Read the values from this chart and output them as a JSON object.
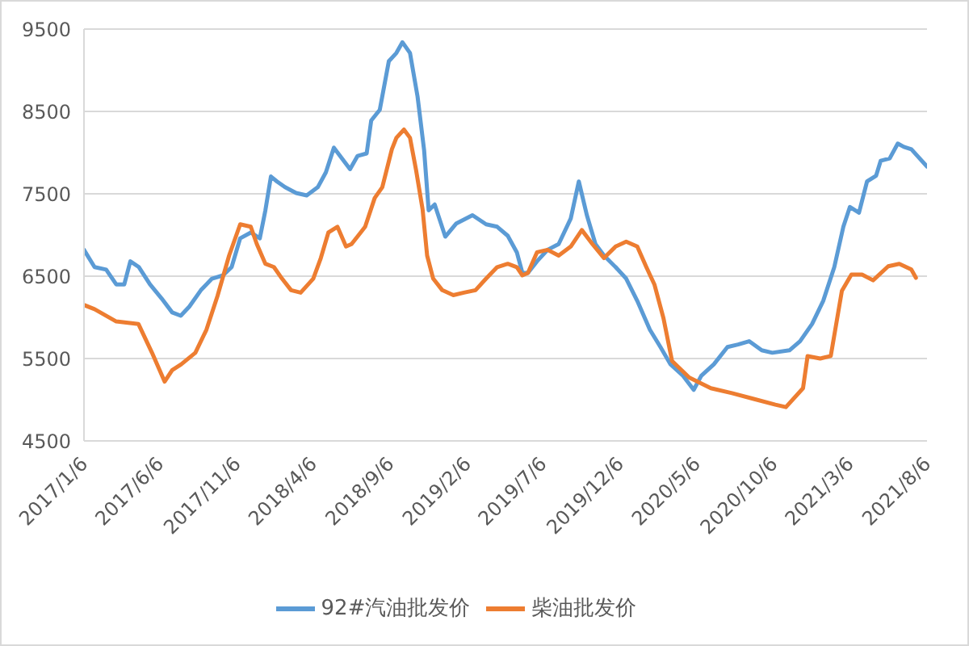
{
  "chart_data": {
    "type": "line",
    "xlim": [
      "2017-01-06",
      "2021-08-06"
    ],
    "xticks": [
      {
        "value": "2017-01-06",
        "label": "2017/1/6"
      },
      {
        "value": "2017-06-06",
        "label": "2017/6/6"
      },
      {
        "value": "2017-11-06",
        "label": "2017/11/6"
      },
      {
        "value": "2018-04-06",
        "label": "2018/4/6"
      },
      {
        "value": "2018-09-06",
        "label": "2018/9/6"
      },
      {
        "value": "2019-02-06",
        "label": "2019/2/6"
      },
      {
        "value": "2019-07-06",
        "label": "2019/7/6"
      },
      {
        "value": "2019-12-06",
        "label": "2019/12/6"
      },
      {
        "value": "2020-05-06",
        "label": "2020/5/6"
      },
      {
        "value": "2020-10-06",
        "label": "2020/10/6"
      },
      {
        "value": "2021-03-06",
        "label": "2021/3/6"
      },
      {
        "value": "2021-08-06",
        "label": "2021/8/6"
      }
    ],
    "ylim": [
      4500,
      9500
    ],
    "yticks": [
      4500,
      5500,
      6500,
      7500,
      8500,
      9500
    ],
    "grid": "y",
    "legend": "bottom",
    "marker": "none",
    "line_style": "solid",
    "series": [
      {
        "name": "92#汽油批发价",
        "color": "#5b9bd5",
        "x": [
          "2017-01-06",
          "2017-01-27",
          "2017-02-19",
          "2017-03-11",
          "2017-03-27",
          "2017-04-08",
          "2017-04-25",
          "2017-05-17",
          "2017-06-09",
          "2017-06-30",
          "2017-07-17",
          "2017-08-03",
          "2017-08-26",
          "2017-09-17",
          "2017-10-09",
          "2017-10-26",
          "2017-11-12",
          "2017-12-03",
          "2017-12-21",
          "2018-01-01",
          "2018-01-12",
          "2018-01-24",
          "2018-02-09",
          "2018-03-03",
          "2018-03-24",
          "2018-04-15",
          "2018-05-01",
          "2018-05-17",
          "2018-06-18",
          "2018-07-03",
          "2018-07-21",
          "2018-07-30",
          "2018-08-16",
          "2018-09-03",
          "2018-09-18",
          "2018-09-30",
          "2018-10-15",
          "2018-10-30",
          "2018-11-12",
          "2018-11-21",
          "2018-12-03",
          "2018-12-24",
          "2019-01-15",
          "2019-02-16",
          "2019-03-15",
          "2019-04-06",
          "2019-04-27",
          "2019-05-15",
          "2019-05-26",
          "2019-06-06",
          "2019-06-24",
          "2019-07-15",
          "2019-08-06",
          "2019-08-30",
          "2019-09-15",
          "2019-10-01",
          "2019-10-18",
          "2019-11-04",
          "2019-11-27",
          "2019-12-18",
          "2020-01-09",
          "2020-02-03",
          "2020-02-24",
          "2020-03-15",
          "2020-04-09",
          "2020-04-30",
          "2020-05-15",
          "2020-06-09",
          "2020-07-06",
          "2020-07-27",
          "2020-08-18",
          "2020-09-12",
          "2020-10-03",
          "2020-11-06",
          "2020-11-27",
          "2020-12-21",
          "2021-01-12",
          "2021-02-03",
          "2021-02-21",
          "2021-03-06",
          "2021-03-24",
          "2021-04-09",
          "2021-04-27",
          "2021-05-06",
          "2021-05-24",
          "2021-06-09",
          "2021-06-21",
          "2021-07-06",
          "2021-08-06"
        ],
        "values": [
          6820,
          6610,
          6580,
          6400,
          6400,
          6680,
          6610,
          6400,
          6230,
          6060,
          6020,
          6130,
          6330,
          6470,
          6510,
          6610,
          6960,
          7030,
          6960,
          7300,
          7710,
          7650,
          7580,
          7510,
          7480,
          7580,
          7760,
          8060,
          7800,
          7960,
          7990,
          8390,
          8520,
          9110,
          9210,
          9340,
          9210,
          8680,
          8030,
          7300,
          7370,
          6980,
          7140,
          7240,
          7130,
          7100,
          6990,
          6790,
          6540,
          6540,
          6680,
          6820,
          6890,
          7200,
          7650,
          7240,
          6890,
          6750,
          6610,
          6470,
          6200,
          5850,
          5640,
          5430,
          5290,
          5120,
          5290,
          5430,
          5640,
          5670,
          5710,
          5600,
          5570,
          5600,
          5710,
          5920,
          6200,
          6610,
          7100,
          7340,
          7270,
          7650,
          7720,
          7900,
          7930,
          8110,
          8070,
          8040,
          7830
        ]
      },
      {
        "name": "柴油批发价",
        "color": "#ed7d31",
        "x": [
          "2017-01-06",
          "2017-01-27",
          "2017-03-11",
          "2017-04-24",
          "2017-05-21",
          "2017-06-15",
          "2017-06-30",
          "2017-07-18",
          "2017-08-15",
          "2017-09-06",
          "2017-09-28",
          "2017-10-21",
          "2017-11-12",
          "2017-12-03",
          "2017-12-15",
          "2018-01-01",
          "2018-01-18",
          "2018-02-03",
          "2018-02-21",
          "2018-03-12",
          "2018-04-06",
          "2018-04-21",
          "2018-05-06",
          "2018-05-24",
          "2018-06-10",
          "2018-06-21",
          "2018-07-09",
          "2018-07-18",
          "2018-08-06",
          "2018-08-21",
          "2018-09-09",
          "2018-09-18",
          "2018-10-03",
          "2018-10-15",
          "2018-10-27",
          "2018-11-09",
          "2018-11-18",
          "2018-11-30",
          "2018-12-18",
          "2019-01-09",
          "2019-01-30",
          "2019-02-22",
          "2019-03-15",
          "2019-04-06",
          "2019-04-27",
          "2019-05-15",
          "2019-05-26",
          "2019-06-06",
          "2019-06-24",
          "2019-07-15",
          "2019-08-06",
          "2019-08-30",
          "2019-09-21",
          "2019-10-12",
          "2019-11-04",
          "2019-11-27",
          "2019-12-18",
          "2020-01-09",
          "2020-01-27",
          "2020-02-12",
          "2020-03-01",
          "2020-03-18",
          "2020-04-21",
          "2020-06-03",
          "2020-07-15",
          "2020-08-27",
          "2020-10-09",
          "2020-10-30",
          "2020-12-03",
          "2020-12-12",
          "2021-01-06",
          "2021-01-27",
          "2021-02-18",
          "2021-03-09",
          "2021-03-30",
          "2021-04-21",
          "2021-05-21",
          "2021-06-12",
          "2021-07-06",
          "2021-07-15"
        ],
        "values": [
          6150,
          6100,
          5950,
          5920,
          5570,
          5220,
          5360,
          5430,
          5570,
          5850,
          6260,
          6750,
          7130,
          7100,
          6890,
          6650,
          6610,
          6470,
          6330,
          6300,
          6470,
          6720,
          7030,
          7100,
          6860,
          6890,
          7030,
          7100,
          7450,
          7580,
          8040,
          8180,
          8280,
          8180,
          7790,
          7310,
          6750,
          6470,
          6330,
          6270,
          6300,
          6330,
          6470,
          6610,
          6650,
          6610,
          6510,
          6540,
          6790,
          6820,
          6750,
          6860,
          7060,
          6890,
          6720,
          6860,
          6920,
          6860,
          6610,
          6400,
          5990,
          5470,
          5270,
          5140,
          5080,
          5010,
          4940,
          4910,
          5140,
          5530,
          5500,
          5530,
          6320,
          6520,
          6520,
          6450,
          6620,
          6650,
          6580,
          6480
        ]
      }
    ]
  }
}
